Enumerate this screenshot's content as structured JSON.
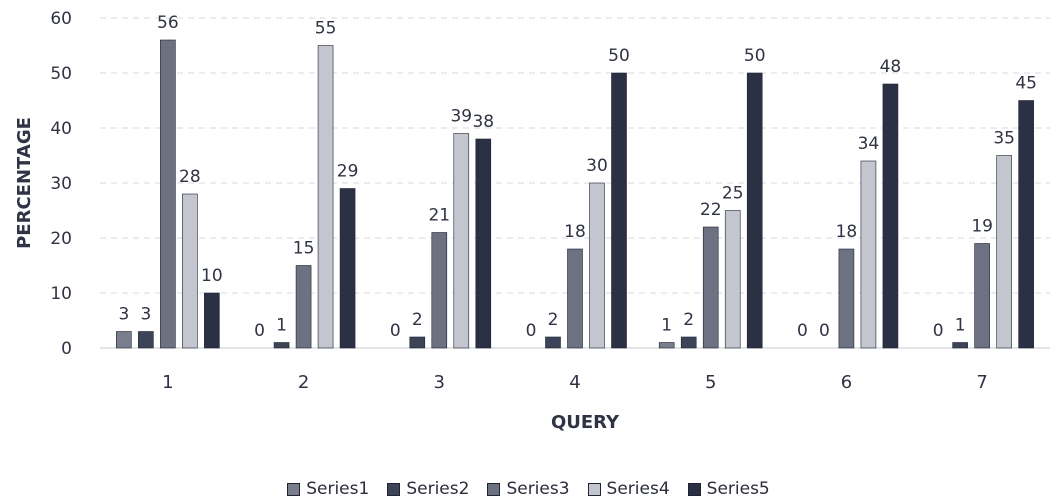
{
  "chart_data": {
    "type": "bar",
    "xlabel": "QUERY",
    "ylabel": "PERCENTAGE",
    "categories": [
      "1",
      "2",
      "3",
      "4",
      "5",
      "6",
      "7"
    ],
    "ylim": [
      0,
      60
    ],
    "yticks": [
      0,
      10,
      20,
      30,
      40,
      50,
      60
    ],
    "grid": true,
    "legend_position": "bottom",
    "series": [
      {
        "name": "Series1",
        "color": "#7a7d8c",
        "values": [
          3,
          0,
          0,
          0,
          1,
          0,
          0
        ]
      },
      {
        "name": "Series2",
        "color": "#3e4458",
        "values": [
          3,
          1,
          2,
          2,
          2,
          0,
          1
        ]
      },
      {
        "name": "Series3",
        "color": "#6d7283",
        "values": [
          56,
          15,
          21,
          18,
          22,
          18,
          19
        ]
      },
      {
        "name": "Series4",
        "color": "#c3c6cf",
        "values": [
          28,
          55,
          39,
          30,
          25,
          34,
          35
        ]
      },
      {
        "name": "Series5",
        "color": "#2b3045",
        "values": [
          10,
          29,
          38,
          50,
          50,
          48,
          45
        ]
      }
    ]
  }
}
